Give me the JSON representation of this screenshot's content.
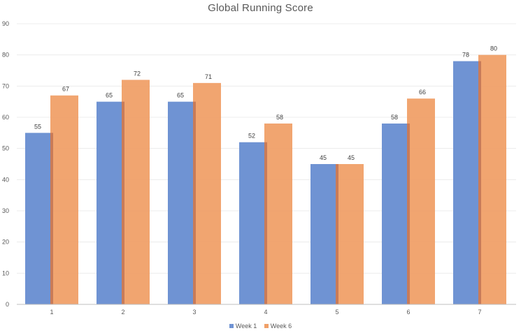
{
  "chart_data": {
    "type": "bar",
    "title": "Global Running Score",
    "xlabel": "",
    "ylabel": "",
    "categories": [
      "1",
      "2",
      "3",
      "4",
      "5",
      "6",
      "7"
    ],
    "series": [
      {
        "name": "Week 1",
        "color": "#6f93d3",
        "values": [
          55,
          65,
          65,
          52,
          45,
          58,
          78
        ]
      },
      {
        "name": "Week 6",
        "color": "#f0a068",
        "values": [
          67,
          72,
          71,
          58,
          45,
          66,
          80
        ]
      }
    ],
    "ylim": [
      0,
      90
    ],
    "yticks": [
      0,
      10,
      20,
      30,
      40,
      50,
      60,
      70,
      80,
      90
    ],
    "grid": true,
    "legend_position": "bottom",
    "data_labels": true
  },
  "title": "Global Running Score",
  "legend": [
    {
      "label": "Week 1",
      "color": "#6f93d3"
    },
    {
      "label": "Week 6",
      "color": "#f0a068"
    }
  ]
}
